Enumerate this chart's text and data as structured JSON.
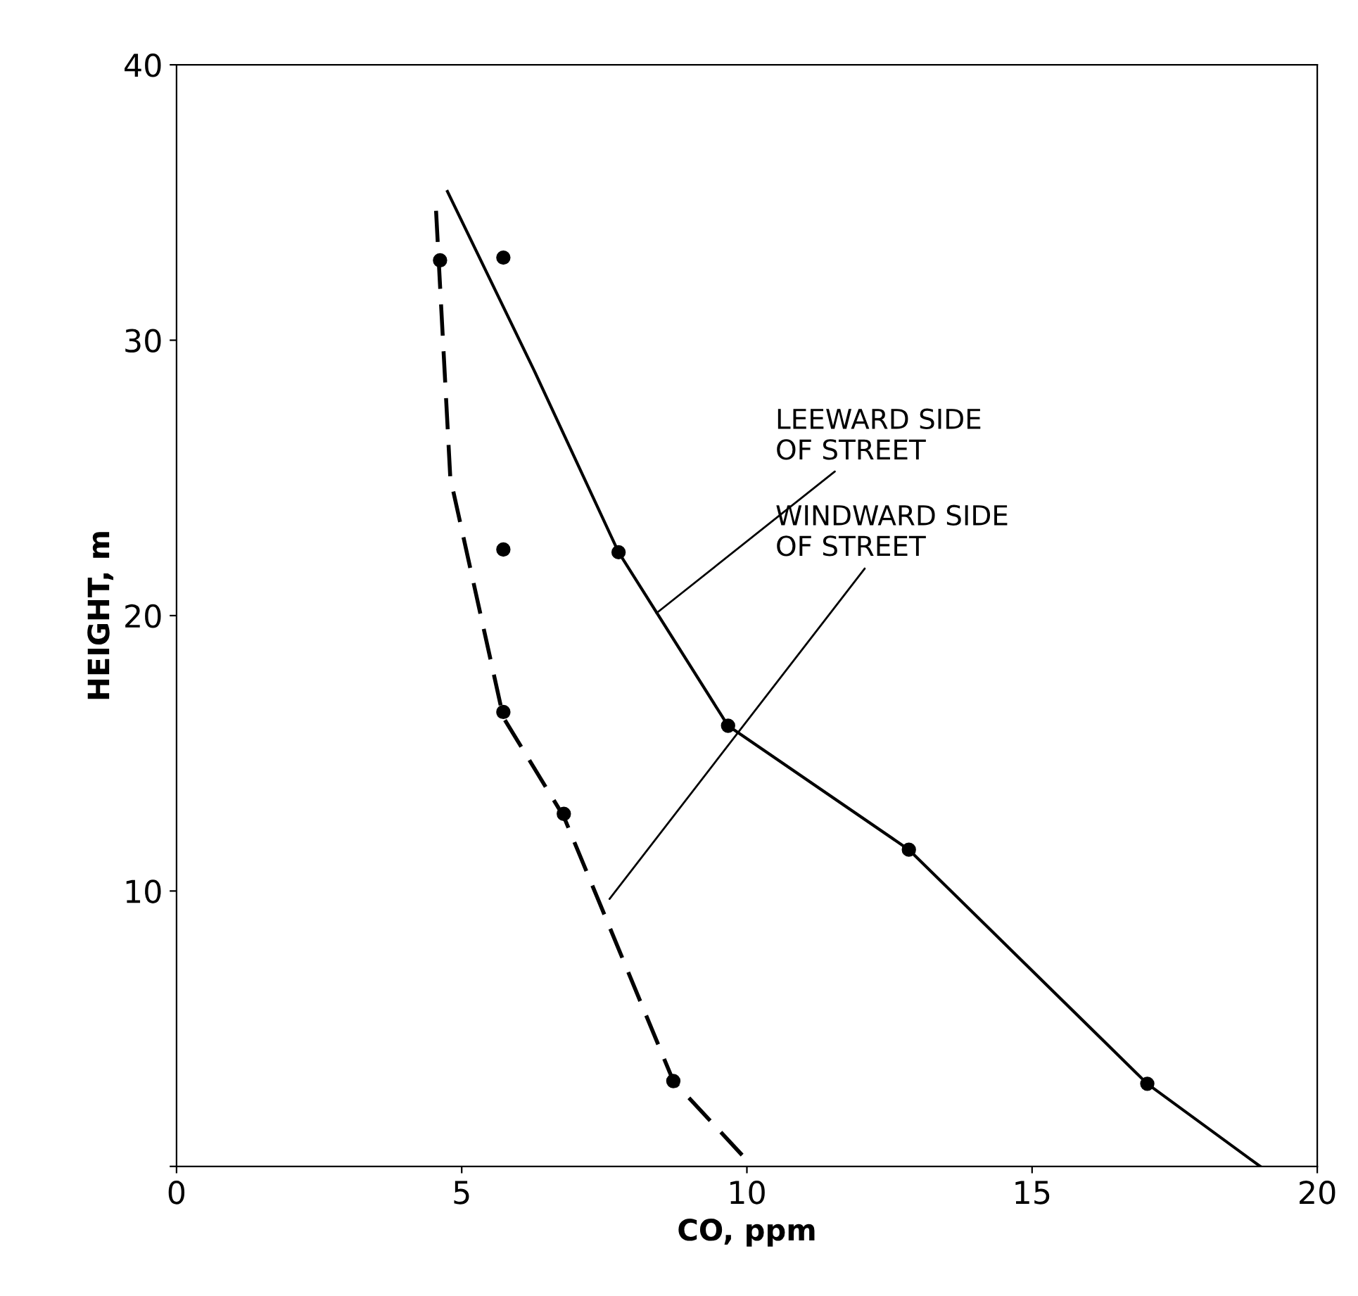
{
  "chart_data": {
    "type": "scatter",
    "xlabel": "CO, ppm",
    "ylabel": "HEIGHT, m",
    "xlim": [
      0,
      20
    ],
    "ylim": [
      0,
      40
    ],
    "xticks": [
      0,
      5,
      10,
      15,
      20
    ],
    "yticks": [
      {
        "value": 0,
        "label": null
      },
      10,
      20,
      30,
      40
    ],
    "grid": false,
    "marker": "circle",
    "series": [
      {
        "type": "line",
        "line_style": "solid",
        "marker": "none",
        "color": "#000000",
        "x": [
          4.75,
          6.27,
          7.75,
          9.67,
          12.84,
          17.02,
          19.0
        ],
        "values": [
          35.4,
          28.9,
          22.3,
          16.0,
          11.5,
          3.0,
          0
        ]
      },
      {
        "type": "line",
        "line_style": "dashed",
        "marker": "none",
        "color": "#000000",
        "x": [
          4.55,
          4.8,
          5.73,
          6.79,
          8.71,
          10.1
        ],
        "values": [
          34.7,
          25.0,
          16.3,
          12.7,
          3.1,
          0
        ]
      },
      {
        "color": "#000000",
        "x": [
          4.62,
          5.73,
          5.73,
          5.73,
          6.79,
          8.71
        ],
        "values": [
          32.9,
          33.0,
          22.4,
          16.5,
          12.8,
          3.1
        ]
      },
      {
        "color": "#000000",
        "x": [
          7.75,
          9.67,
          12.84,
          17.02
        ],
        "values": [
          22.3,
          16.0,
          11.5,
          3.0
        ]
      }
    ],
    "annotations": [
      {
        "text": "LEEWARD SIDE\nOF STREET",
        "x": 8.36,
        "y": 20.0
      },
      {
        "text": "WINDWARD SIDE\nOF STREET",
        "x": 7.55,
        "y": 9.6
      }
    ]
  }
}
